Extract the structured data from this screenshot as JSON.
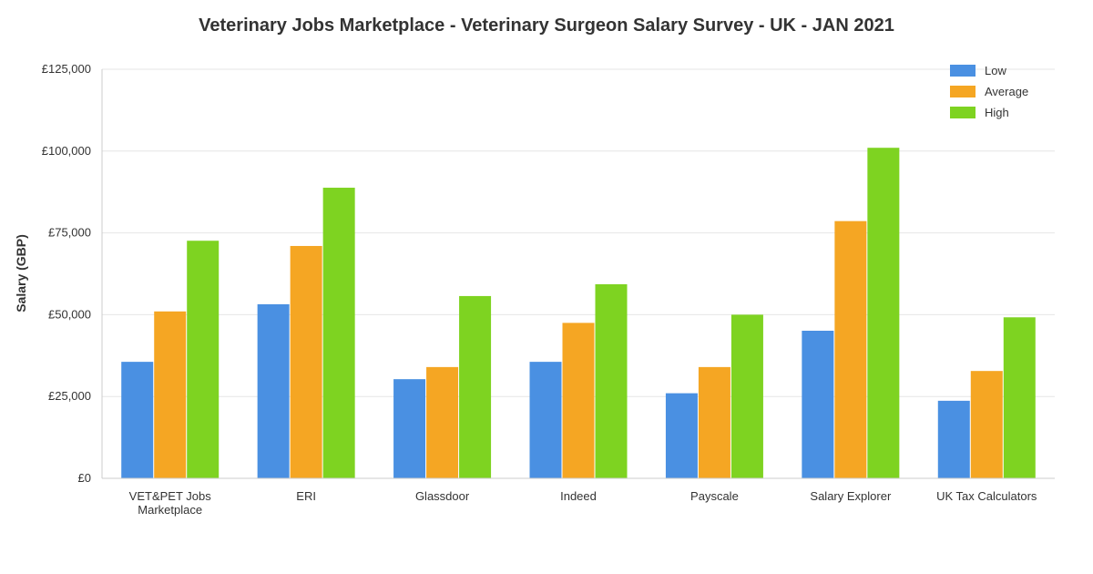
{
  "chart_data": {
    "type": "bar",
    "title": "Veterinary Jobs Marketplace - Veterinary Surgeon Salary Survey - UK - JAN 2021",
    "xlabel": "",
    "ylabel": "Salary (GBP)",
    "ylim": [
      0,
      125000
    ],
    "yticks": [
      0,
      25000,
      50000,
      75000,
      100000,
      125000
    ],
    "ytick_labels": [
      "£0",
      "£25,000",
      "£50,000",
      "£75,000",
      "£100,000",
      "£125,000"
    ],
    "grid": true,
    "legend_position": "top-right",
    "categories": [
      [
        "VET&PET Jobs",
        "Marketplace"
      ],
      [
        "ERI"
      ],
      [
        "Glassdoor"
      ],
      [
        "Indeed"
      ],
      [
        "Payscale"
      ],
      [
        "Salary Explorer"
      ],
      [
        "UK Tax Calculators"
      ]
    ],
    "series": [
      {
        "name": "Low",
        "color": "#4a90e2",
        "values": [
          35600,
          53200,
          30300,
          35600,
          26000,
          45100,
          23700
        ]
      },
      {
        "name": "Average",
        "color": "#f5a623",
        "values": [
          51000,
          71000,
          34000,
          47500,
          34000,
          78600,
          32800
        ]
      },
      {
        "name": "High",
        "color": "#7ed321",
        "values": [
          72600,
          88800,
          55700,
          59300,
          50000,
          101000,
          49200
        ]
      }
    ]
  }
}
